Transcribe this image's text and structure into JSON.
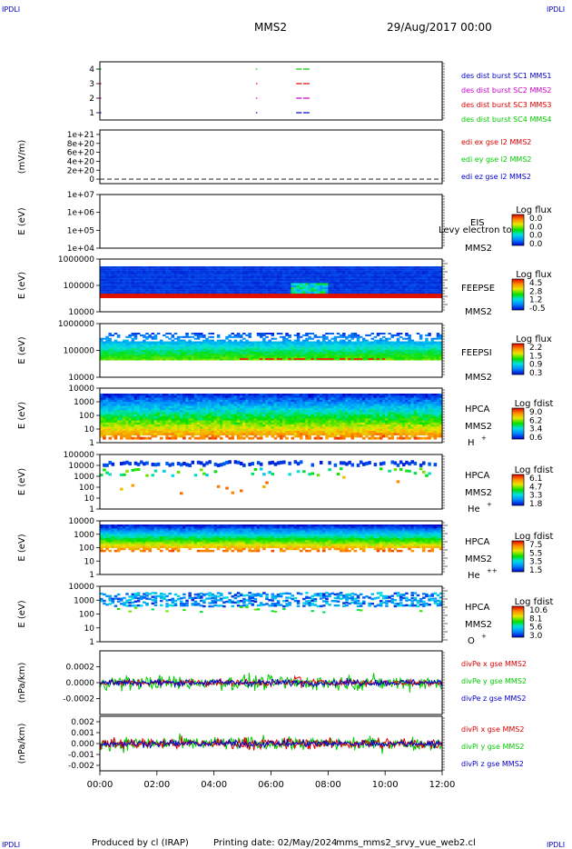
{
  "header": {
    "corner_label": "IPDLI",
    "spacecraft": "MMS2",
    "date": "29/Aug/2017 00:00"
  },
  "footer": {
    "produced_by": "Produced by  cl (IRAP)",
    "printing_date": "Printing date: 02/May/2024",
    "script": "mms_mms2_srvy_vue_web2.cl"
  },
  "time_axis": {
    "start": "2017-08-29T00:00",
    "end": "2017-08-29T12:00",
    "ticks": [
      "00:00",
      "02:00",
      "04:00",
      "06:00",
      "08:00",
      "10:00",
      "12:00"
    ]
  },
  "colors": {
    "mms1": "#0000cc",
    "mms2": "#cc00cc",
    "mms3": "#dd0000",
    "mms4": "#00cc00",
    "x_comp": "#dd0000",
    "y_comp": "#00cc00",
    "z_comp": "#0000cc"
  },
  "chart_data": [
    {
      "type": "scatter",
      "id": "burst",
      "ylim": [
        0.5,
        4.5
      ],
      "yticks": [
        "1",
        "2",
        "3",
        "4"
      ],
      "legend": [
        {
          "label": "des dist burst SC1 MMS1",
          "color": "#0000cc"
        },
        {
          "label": "des dist burst SC2 MMS2",
          "color": "#cc00cc"
        },
        {
          "label": "des dist burst SC3 MMS3",
          "color": "#dd0000"
        },
        {
          "label": "des dist burst SC4 MMS4",
          "color": "#00cc00"
        }
      ],
      "series": [
        {
          "y": 4,
          "color": "#00cc00",
          "intervals": [
            [
              0.0,
              0.05
            ],
            [
              5.47,
              5.52
            ],
            [
              6.88,
              7.08
            ],
            [
              7.13,
              7.35
            ]
          ]
        },
        {
          "y": 3,
          "color": "#dd0000",
          "intervals": [
            [
              0.0,
              0.05
            ],
            [
              5.47,
              5.52
            ],
            [
              6.88,
              7.08
            ],
            [
              7.13,
              7.35
            ]
          ]
        },
        {
          "y": 2,
          "color": "#cc00cc",
          "intervals": [
            [
              0.0,
              0.05
            ],
            [
              5.47,
              5.52
            ],
            [
              6.88,
              7.08
            ],
            [
              7.13,
              7.35
            ]
          ]
        },
        {
          "y": 1,
          "color": "#0000cc",
          "intervals": [
            [
              0.0,
              0.05
            ],
            [
              5.47,
              5.52
            ],
            [
              6.88,
              7.08
            ],
            [
              7.13,
              7.35
            ]
          ]
        }
      ]
    },
    {
      "type": "line",
      "id": "edi",
      "ylabel": "(mV/m)",
      "ylim": [
        -1e+20,
        1.1e+21
      ],
      "yticks": [
        "0",
        "2e+20",
        "4e+20",
        "6e+20",
        "8e+20",
        "1e+21"
      ],
      "legend": [
        {
          "label": "edi ex gse l2 MMS2",
          "color": "#dd0000"
        },
        {
          "label": "edi ey gse l2 MMS2",
          "color": "#00cc00"
        },
        {
          "label": "edi ez gse l2 MMS2",
          "color": "#0000cc"
        }
      ],
      "series": [
        {
          "name": "zero",
          "value": 0
        }
      ]
    },
    {
      "type": "heatmap",
      "id": "eis",
      "ylabel": "E (eV)",
      "yscale": "log",
      "yticks": [
        "1e+04",
        "1e+05",
        "1e+06",
        "1e+07"
      ],
      "labels": [
        "EIS",
        "Levy electron to",
        "MMS2"
      ],
      "colorbar": {
        "title": "Log flux",
        "ticks": [
          "0.0",
          "0.0",
          "0.0",
          "0.0"
        ]
      },
      "empty": true
    },
    {
      "type": "heatmap",
      "id": "feeps_e",
      "ylabel": "E (eV)",
      "yscale": "log",
      "yticks": [
        "10000",
        "100000",
        "1000000"
      ],
      "labels": [
        "FEEPSE",
        "MMS2"
      ],
      "colorbar": {
        "title": "Log flux",
        "ticks": [
          "4.5",
          "2.8",
          "1.2",
          "-0.5"
        ]
      }
    },
    {
      "type": "heatmap",
      "id": "feeps_i",
      "ylabel": "E (eV)",
      "yscale": "log",
      "yticks": [
        "10000",
        "100000",
        "1000000"
      ],
      "labels": [
        "FEEPSI",
        "MMS2"
      ],
      "colorbar": {
        "title": "Log flux",
        "ticks": [
          "2.2",
          "1.5",
          "0.9",
          "0.3"
        ]
      }
    },
    {
      "type": "heatmap",
      "id": "hpca_h",
      "ylabel": "E (eV)",
      "yscale": "log",
      "yticks": [
        "1",
        "10",
        "100",
        "1000",
        "10000"
      ],
      "labels": [
        "HPCA",
        "MMS2",
        "H"
      ],
      "species_sup": "+",
      "colorbar": {
        "title": "Log fdist",
        "ticks": [
          "9.0",
          "6.2",
          "3.4",
          "0.6"
        ]
      }
    },
    {
      "type": "heatmap",
      "id": "hpca_he",
      "ylabel": "E (eV)",
      "yscale": "log",
      "yticks": [
        "1",
        "10",
        "100",
        "1000",
        "10000",
        "100000"
      ],
      "labels": [
        "HPCA",
        "MMS2",
        "He"
      ],
      "species_sup": "+",
      "colorbar": {
        "title": "Log fdist",
        "ticks": [
          "6.1",
          "4.7",
          "3.3",
          "1.8"
        ]
      }
    },
    {
      "type": "heatmap",
      "id": "hpca_hepp",
      "ylabel": "E (eV)",
      "yscale": "log",
      "yticks": [
        "1",
        "10",
        "100",
        "1000",
        "10000"
      ],
      "labels": [
        "HPCA",
        "MMS2",
        "He"
      ],
      "species_sup": "++",
      "colorbar": {
        "title": "Log fdist",
        "ticks": [
          "7.5",
          "5.5",
          "3.5",
          "1.5"
        ]
      }
    },
    {
      "type": "heatmap",
      "id": "hpca_o",
      "ylabel": "E (eV)",
      "yscale": "log",
      "yticks": [
        "1",
        "10",
        "100",
        "1000",
        "10000"
      ],
      "labels": [
        "HPCA",
        "MMS2",
        "O"
      ],
      "species_sup": "+",
      "colorbar": {
        "title": "Log fdist",
        "ticks": [
          "10.6",
          "8.1",
          "5.6",
          "3.0"
        ]
      }
    },
    {
      "type": "line",
      "id": "divpe",
      "ylabel": "(nPa/km)",
      "ylim": [
        -0.0004,
        0.0004
      ],
      "yticks": [
        "-0.0002",
        "0.0000",
        "0.0002"
      ],
      "legend": [
        {
          "label": "divPe x gse MMS2",
          "color": "#dd0000"
        },
        {
          "label": "divPe y gse MMS2",
          "color": "#00cc00"
        },
        {
          "label": "divPe z gse MMS2",
          "color": "#0000cc"
        }
      ],
      "noise_amplitude": {
        "x": 4e-05,
        "y": 9e-05,
        "z": 4e-05
      }
    },
    {
      "type": "line",
      "id": "divpi",
      "ylabel": "(nPa/km)",
      "ylim": [
        -0.0025,
        0.0025
      ],
      "yticks": [
        "-0.002",
        "-0.001",
        "0.000",
        "0.001",
        "0.002"
      ],
      "legend": [
        {
          "label": "divPi x gse MMS2",
          "color": "#dd0000"
        },
        {
          "label": "divPi y gse MMS2",
          "color": "#00cc00"
        },
        {
          "label": "divPi z gse MMS2",
          "color": "#0000cc"
        }
      ],
      "noise_amplitude": {
        "x": 0.0005,
        "y": 0.0006,
        "z": 0.0003
      }
    }
  ]
}
